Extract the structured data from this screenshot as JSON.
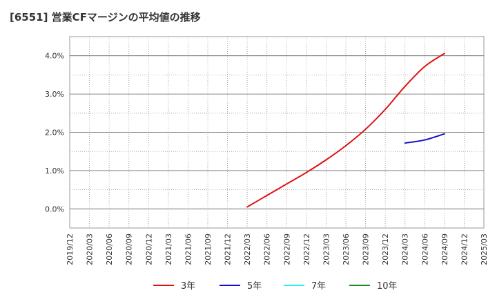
{
  "chart_data": {
    "type": "line",
    "title": "[6551]  営業CFマージンの平均値の推移",
    "xlabel": "",
    "ylabel": "",
    "ylim": [
      -0.5,
      4.5
    ],
    "grid": true,
    "legend_position": "bottom",
    "x": [
      "2019/12",
      "2020/03",
      "2020/06",
      "2020/09",
      "2020/12",
      "2021/03",
      "2021/06",
      "2021/09",
      "2021/12",
      "2022/03",
      "2022/06",
      "2022/09",
      "2022/12",
      "2023/03",
      "2023/06",
      "2023/09",
      "2023/12",
      "2024/03",
      "2024/06",
      "2024/09",
      "2024/12",
      "2025/03"
    ],
    "y_ticks": [
      {
        "value": 0.0,
        "label": "0.0%"
      },
      {
        "value": 1.0,
        "label": "1.0%"
      },
      {
        "value": 2.0,
        "label": "2.0%"
      },
      {
        "value": 3.0,
        "label": "3.0%"
      },
      {
        "value": 4.0,
        "label": "4.0%"
      }
    ],
    "series": [
      {
        "name": "3年",
        "color": "#dd1111",
        "values": [
          null,
          null,
          null,
          null,
          null,
          null,
          null,
          null,
          null,
          0.05,
          0.35,
          0.65,
          0.95,
          1.28,
          1.65,
          2.08,
          2.6,
          3.2,
          3.72,
          4.06,
          null,
          null
        ]
      },
      {
        "name": "5年",
        "color": "#1111cc",
        "values": [
          null,
          null,
          null,
          null,
          null,
          null,
          null,
          null,
          null,
          null,
          null,
          null,
          null,
          null,
          null,
          null,
          null,
          1.72,
          1.8,
          1.96,
          null,
          null
        ]
      },
      {
        "name": "7年",
        "color": "#33eeee",
        "values": [
          null,
          null,
          null,
          null,
          null,
          null,
          null,
          null,
          null,
          null,
          null,
          null,
          null,
          null,
          null,
          null,
          null,
          null,
          null,
          null,
          null,
          null
        ]
      },
      {
        "name": "10年",
        "color": "#228822",
        "values": [
          null,
          null,
          null,
          null,
          null,
          null,
          null,
          null,
          null,
          null,
          null,
          null,
          null,
          null,
          null,
          null,
          null,
          null,
          null,
          null,
          null,
          null
        ]
      }
    ]
  }
}
